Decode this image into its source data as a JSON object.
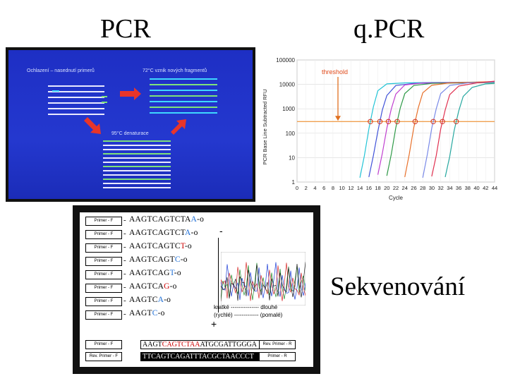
{
  "titles": {
    "pcr": "PCR",
    "qpcr": "q.PCR",
    "seq": "Sekvenování"
  },
  "pcr_slide": {
    "label_cooling": "Ochlazení – nasednutí primerů",
    "label_extension": "72°C vznik nových fragmentů",
    "label_denature": "95°C denaturace",
    "colors": {
      "bg": "#2438cf",
      "arrow": "#e8352a",
      "strand": "#e9e9ff",
      "primer_green": "#7fe27a",
      "primer_cyan": "#3fd7ff"
    }
  },
  "chart_data": {
    "type": "line",
    "ylabel": "PCR Base Line Subtracted RFU",
    "xlabel": "Cycle",
    "yscale": "log",
    "ylim": [
      1,
      100000
    ],
    "xlim": [
      0,
      44
    ],
    "yticks": [
      "100000",
      "10000",
      "1000",
      "100",
      "10",
      "1"
    ],
    "xticks": [
      "0",
      "2",
      "4",
      "6",
      "8",
      "10",
      "12",
      "14",
      "16",
      "18",
      "20",
      "22",
      "24",
      "26",
      "28",
      "30",
      "32",
      "34",
      "36",
      "38",
      "40",
      "42",
      "44"
    ],
    "threshold_label": "threshold",
    "threshold_value": 300,
    "grid": true,
    "series": [
      {
        "color": "#22c4d6",
        "points": [
          [
            14,
            1.5
          ],
          [
            15,
            12
          ],
          [
            16,
            150
          ],
          [
            17,
            1200
          ],
          [
            18,
            5500
          ],
          [
            20,
            10500
          ],
          [
            24,
            11500
          ],
          [
            30,
            12000
          ],
          [
            44,
            12500
          ]
        ]
      },
      {
        "color": "#3f51d8",
        "points": [
          [
            16,
            1.6
          ],
          [
            17,
            12
          ],
          [
            18,
            120
          ],
          [
            19,
            900
          ],
          [
            20,
            3500
          ],
          [
            22,
            9000
          ],
          [
            26,
            11000
          ],
          [
            44,
            12000
          ]
        ]
      },
      {
        "color": "#c040d0",
        "points": [
          [
            18,
            2
          ],
          [
            19,
            15
          ],
          [
            20,
            160
          ],
          [
            21,
            1000
          ],
          [
            22,
            4000
          ],
          [
            24,
            9500
          ],
          [
            28,
            11500
          ],
          [
            44,
            12500
          ]
        ]
      },
      {
        "color": "#2f9a48",
        "points": [
          [
            20,
            1.8
          ],
          [
            21,
            14
          ],
          [
            22,
            170
          ],
          [
            23,
            1100
          ],
          [
            24,
            4200
          ],
          [
            26,
            9000
          ],
          [
            30,
            11000
          ],
          [
            44,
            12000
          ]
        ]
      },
      {
        "color": "#e8702a",
        "points": [
          [
            24,
            1.6
          ],
          [
            25,
            14
          ],
          [
            26,
            170
          ],
          [
            27,
            1100
          ],
          [
            28,
            4500
          ],
          [
            30,
            9200
          ],
          [
            34,
            11500
          ],
          [
            44,
            13000
          ]
        ]
      },
      {
        "color": "#7a8ae8",
        "points": [
          [
            28,
            1.5
          ],
          [
            29,
            13
          ],
          [
            30,
            160
          ],
          [
            31,
            1000
          ],
          [
            32,
            4200
          ],
          [
            34,
            9000
          ],
          [
            38,
            11500
          ],
          [
            44,
            12500
          ]
        ]
      },
      {
        "color": "#e03050",
        "points": [
          [
            30,
            1.7
          ],
          [
            31,
            12
          ],
          [
            32,
            150
          ],
          [
            33,
            900
          ],
          [
            34,
            3800
          ],
          [
            36,
            8500
          ],
          [
            40,
            11500
          ],
          [
            44,
            13500
          ]
        ]
      },
      {
        "color": "#27a8a0",
        "points": [
          [
            33,
            1.6
          ],
          [
            34,
            11
          ],
          [
            35,
            130
          ],
          [
            36,
            800
          ],
          [
            37,
            3200
          ],
          [
            39,
            7500
          ],
          [
            42,
            10500
          ],
          [
            44,
            11000
          ]
        ]
      }
    ]
  },
  "sequencing": {
    "primer_label": "Primer - F",
    "reverse_label": "Rev. Primer - R",
    "reverse_f_label": "Rev. Primer - F",
    "primer_r_label": "Primer - R",
    "fragments": [
      {
        "base": "AAGTCAGTCTA",
        "last": "A",
        "tail": "-o"
      },
      {
        "base": "AAGTCAGTCT",
        "last": "A",
        "tail": "-o"
      },
      {
        "base": "AAGTCAGTC",
        "last": "T",
        "tail": "-o"
      },
      {
        "base": "AAGTCAGT",
        "last": "C",
        "tail": "-o"
      },
      {
        "base": "AAGTCAG",
        "last": "T",
        "tail": "-o"
      },
      {
        "base": "AAGTCA",
        "last": "G",
        "tail": "-o"
      },
      {
        "base": "AAGTC",
        "last": "A",
        "tail": "-o"
      },
      {
        "base": "AAGT",
        "last": "C",
        "tail": "-o"
      }
    ],
    "full_top": {
      "a": "AAGT",
      "b": "CAGTCTAA",
      "c": "ATGCGATTGGGA"
    },
    "full_bottom": "TTCAGTCAGATTTACGCTAACCCT",
    "minus": "-",
    "plus": "+",
    "legend_line1": "kratké --------------- dlouhé",
    "legend_line2": "(rychlé) ------------- (pomalé)"
  }
}
